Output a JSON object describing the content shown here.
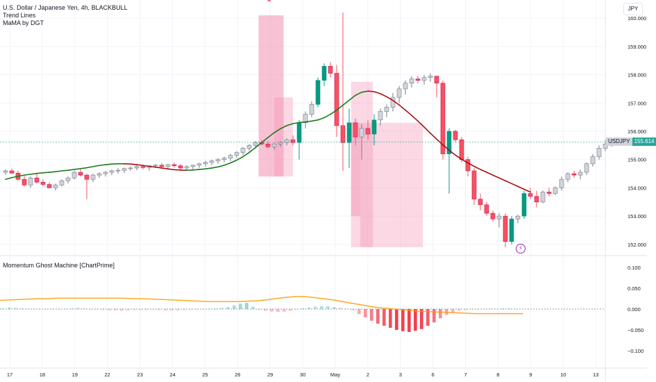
{
  "legend": {
    "symbol_title": "U.S. Dollar / Japanese Yen, 4h, BLACKBULL",
    "indicator_1": "Trend Lines",
    "indicator_2": "MaMA by DGT"
  },
  "currency_button": "JPY",
  "price_label": {
    "symbol": "USDJPY",
    "value": "155.614"
  },
  "pane2_title": "Momentum Ghost Machine [ChartPrime]",
  "colors": {
    "up_fill": "#d1d4dc",
    "down_fill": "#f7525f",
    "bull_green": "#089981",
    "ma_red": "#a70f0f",
    "ma_green": "#1b7a1b",
    "box_pink": "#f48fb1",
    "hist_red": "#f23645",
    "hist_green": "#26a69a",
    "signal_orange": "#ff9800"
  },
  "chart_data": [
    {
      "type": "candlestick",
      "title": "U.S. Dollar / Japanese Yen, 4h, BLACKBULL",
      "y_axis_ticks": [
        "160.000",
        "159.000",
        "158.000",
        "157.000",
        "156.000",
        "155.000",
        "154.000",
        "153.000",
        "152.000"
      ],
      "ylim": [
        151.8,
        160.2
      ],
      "x_axis_ticks": [
        "17",
        "18",
        "19",
        "22",
        "23",
        "24",
        "25",
        "26",
        "29",
        "30",
        "May",
        "2",
        "3",
        "6",
        "7",
        "8",
        "9",
        "10",
        "13"
      ],
      "last_price": 155.614,
      "ohlc": [
        [
          154.55,
          154.65,
          154.45,
          154.6
        ],
        [
          154.6,
          154.68,
          154.5,
          154.52
        ],
        [
          154.52,
          154.6,
          154.25,
          154.3
        ],
        [
          154.3,
          154.42,
          154.05,
          154.1
        ],
        [
          154.1,
          154.4,
          154.0,
          154.35
        ],
        [
          154.35,
          154.5,
          154.15,
          154.2
        ],
        [
          154.2,
          154.3,
          154.05,
          154.12
        ],
        [
          154.12,
          154.2,
          153.98,
          154.0
        ],
        [
          154.0,
          154.15,
          153.9,
          154.1
        ],
        [
          154.1,
          154.3,
          154.05,
          154.25
        ],
        [
          154.25,
          154.4,
          154.15,
          154.35
        ],
        [
          154.35,
          154.6,
          154.3,
          154.55
        ],
        [
          154.55,
          154.7,
          154.4,
          154.45
        ],
        [
          154.45,
          154.5,
          153.6,
          154.3
        ],
        [
          154.3,
          154.5,
          154.2,
          154.45
        ],
        [
          154.45,
          154.55,
          154.35,
          154.5
        ],
        [
          154.5,
          154.6,
          154.4,
          154.55
        ],
        [
          154.55,
          154.65,
          154.45,
          154.6
        ],
        [
          154.6,
          154.7,
          154.5,
          154.62
        ],
        [
          154.62,
          154.72,
          154.52,
          154.68
        ],
        [
          154.68,
          154.75,
          154.6,
          154.7
        ],
        [
          154.7,
          154.8,
          154.62,
          154.75
        ],
        [
          154.75,
          154.82,
          154.65,
          154.72
        ],
        [
          154.72,
          154.8,
          154.6,
          154.78
        ],
        [
          154.78,
          154.85,
          154.7,
          154.8
        ],
        [
          154.8,
          154.88,
          154.7,
          154.75
        ],
        [
          154.75,
          154.85,
          154.68,
          154.82
        ],
        [
          154.82,
          154.9,
          154.72,
          154.78
        ],
        [
          154.78,
          154.85,
          154.6,
          154.7
        ],
        [
          154.7,
          154.8,
          154.62,
          154.75
        ],
        [
          154.75,
          154.82,
          154.65,
          154.8
        ],
        [
          154.8,
          154.88,
          154.7,
          154.85
        ],
        [
          154.85,
          154.95,
          154.75,
          154.9
        ],
        [
          154.9,
          155.0,
          154.8,
          154.95
        ],
        [
          154.95,
          155.05,
          154.85,
          155.0
        ],
        [
          155.0,
          155.1,
          154.9,
          155.05
        ],
        [
          155.05,
          155.2,
          154.95,
          155.15
        ],
        [
          155.15,
          155.3,
          155.05,
          155.25
        ],
        [
          155.25,
          155.45,
          155.15,
          155.4
        ],
        [
          155.4,
          155.55,
          155.3,
          155.5
        ],
        [
          155.5,
          155.65,
          155.4,
          155.6
        ],
        [
          155.6,
          155.7,
          155.5,
          155.55
        ],
        [
          155.55,
          155.65,
          155.4,
          155.45
        ],
        [
          155.45,
          155.6,
          155.35,
          155.55
        ],
        [
          155.55,
          155.65,
          155.45,
          155.6
        ],
        [
          155.6,
          155.75,
          155.5,
          155.7
        ],
        [
          155.7,
          155.85,
          155.5,
          155.6
        ],
        [
          155.6,
          156.4,
          155.0,
          156.3
        ],
        [
          156.3,
          156.7,
          156.1,
          156.6
        ],
        [
          156.6,
          157.05,
          156.5,
          156.95
        ],
        [
          156.95,
          157.9,
          156.85,
          157.8
        ],
        [
          157.8,
          158.4,
          157.6,
          158.3
        ],
        [
          158.3,
          158.45,
          157.9,
          158.05
        ],
        [
          158.05,
          158.35,
          155.8,
          156.2
        ],
        [
          156.2,
          160.2,
          154.6,
          155.6
        ],
        [
          155.6,
          156.8,
          154.7,
          156.3
        ],
        [
          156.3,
          156.45,
          155.5,
          155.8
        ],
        [
          155.8,
          156.25,
          155.0,
          156.1
        ],
        [
          156.1,
          156.4,
          155.7,
          155.9
        ],
        [
          155.9,
          156.6,
          155.5,
          156.4
        ],
        [
          156.4,
          156.8,
          156.2,
          156.7
        ],
        [
          156.7,
          156.95,
          156.5,
          156.85
        ],
        [
          156.85,
          157.35,
          156.7,
          157.2
        ],
        [
          157.2,
          157.6,
          157.0,
          157.5
        ],
        [
          157.5,
          157.8,
          157.3,
          157.7
        ],
        [
          157.7,
          157.95,
          157.55,
          157.85
        ],
        [
          157.85,
          157.95,
          157.7,
          157.8
        ],
        [
          157.8,
          158.0,
          157.65,
          157.9
        ],
        [
          157.9,
          158.05,
          157.75,
          157.95
        ],
        [
          157.95,
          157.95,
          157.2,
          157.7
        ],
        [
          157.7,
          157.8,
          155.0,
          155.2
        ],
        [
          155.2,
          156.1,
          153.8,
          156.0
        ],
        [
          156.0,
          156.05,
          155.6,
          155.7
        ],
        [
          155.7,
          155.8,
          154.9,
          155.0
        ],
        [
          155.0,
          155.1,
          154.4,
          154.6
        ],
        [
          154.6,
          154.7,
          153.4,
          153.6
        ],
        [
          153.6,
          153.8,
          153.2,
          153.4
        ],
        [
          153.4,
          153.5,
          153.0,
          153.1
        ],
        [
          153.1,
          153.2,
          152.8,
          152.9
        ],
        [
          152.9,
          153.1,
          152.6,
          153.0
        ],
        [
          153.0,
          153.1,
          151.9,
          152.1
        ],
        [
          152.1,
          153.0,
          152.0,
          152.9
        ],
        [
          152.9,
          153.05,
          152.75,
          153.0
        ],
        [
          153.0,
          153.9,
          152.9,
          153.8
        ],
        [
          153.8,
          154.0,
          153.6,
          153.7
        ],
        [
          153.7,
          153.9,
          153.3,
          153.5
        ],
        [
          153.5,
          153.9,
          153.45,
          153.85
        ],
        [
          153.85,
          154.0,
          153.7,
          153.8
        ],
        [
          153.8,
          154.05,
          153.75,
          154.0
        ],
        [
          154.0,
          154.4,
          153.9,
          154.3
        ],
        [
          154.3,
          154.55,
          154.2,
          154.5
        ],
        [
          154.5,
          154.6,
          154.35,
          154.45
        ],
        [
          154.45,
          154.65,
          154.3,
          154.55
        ],
        [
          154.55,
          154.9,
          154.45,
          154.85
        ],
        [
          154.85,
          155.2,
          154.75,
          155.1
        ],
        [
          155.1,
          155.5,
          155.0,
          155.4
        ],
        [
          155.4,
          155.7,
          155.3,
          155.55
        ],
        [
          155.55,
          155.75,
          155.45,
          155.7
        ],
        [
          155.7,
          155.72,
          155.55,
          155.6
        ],
        [
          155.6,
          155.7,
          155.55,
          155.614
        ]
      ],
      "moving_average": [
        154.3,
        154.36,
        154.41,
        154.45,
        154.48,
        154.51,
        154.53,
        154.55,
        154.57,
        154.6,
        154.62,
        154.65,
        154.68,
        154.71,
        154.75,
        154.79,
        154.82,
        154.84,
        154.85,
        154.85,
        154.84,
        154.82,
        154.79,
        154.76,
        154.73,
        154.7,
        154.67,
        154.64,
        154.63,
        154.62,
        154.63,
        154.65,
        154.67,
        154.7,
        154.74,
        154.8,
        154.88,
        154.98,
        155.1,
        155.25,
        155.42,
        155.6,
        155.78,
        155.95,
        156.09,
        156.2,
        156.27,
        156.31,
        156.33,
        156.36,
        156.4,
        156.48,
        156.6,
        156.75,
        156.92,
        157.1,
        157.27,
        157.38,
        157.42,
        157.4,
        157.33,
        157.22,
        157.09,
        156.93,
        156.75,
        156.56,
        156.36,
        156.15,
        155.93,
        155.72,
        155.52,
        155.33,
        155.16,
        155.01,
        154.88,
        154.76,
        154.65,
        154.55,
        154.45,
        154.35,
        154.25,
        154.15,
        154.05,
        153.95,
        153.85
      ]
    },
    {
      "type": "bar",
      "title": "Momentum Ghost Machine [ChartPrime]",
      "y_axis_ticks": [
        "0.100",
        "0.050",
        "0.000",
        "−0.050",
        "−0.100"
      ],
      "ylim": [
        -0.125,
        0.125
      ],
      "histogram": [
        0.002,
        0.004,
        0.003,
        0.002,
        0.001,
        0.001,
        0.0,
        0.0,
        0.0,
        0.0,
        0.001,
        0.002,
        0.003,
        0.002,
        0.0,
        -0.001,
        -0.002,
        -0.003,
        -0.003,
        -0.004,
        -0.003,
        -0.002,
        -0.002,
        -0.002,
        -0.001,
        -0.002,
        -0.003,
        -0.003,
        -0.003,
        -0.002,
        -0.001,
        -0.001,
        0.0,
        0.001,
        0.002,
        0.003,
        0.005,
        0.009,
        0.013,
        0.015,
        0.006,
        -0.002,
        -0.004,
        -0.006,
        -0.007,
        -0.006,
        -0.004,
        -0.001,
        0.002,
        0.004,
        0.006,
        0.007,
        0.007,
        0.005,
        0.003,
        0.001,
        -0.003,
        -0.012,
        -0.02,
        -0.028,
        -0.035,
        -0.04,
        -0.045,
        -0.05,
        -0.053,
        -0.055,
        -0.052,
        -0.048,
        -0.04,
        -0.032,
        -0.022,
        -0.014,
        -0.008,
        -0.004,
        -0.002,
        -0.001,
        0.0,
        0.0,
        0.001,
        0.001,
        0.002,
        0.002,
        0.001
      ],
      "signal_line": [
        0.021,
        0.022,
        0.023,
        0.024,
        0.025,
        0.025,
        0.026,
        0.026,
        0.026,
        0.026,
        0.026,
        0.026,
        0.026,
        0.026,
        0.025,
        0.025,
        0.024,
        0.023,
        0.022,
        0.021,
        0.02,
        0.019,
        0.018,
        0.018,
        0.018,
        0.018,
        0.019,
        0.02,
        0.022,
        0.025,
        0.028,
        0.03,
        0.03,
        0.028,
        0.025,
        0.022,
        0.018,
        0.014,
        0.01,
        0.006,
        0.003,
        0.001,
        -0.001,
        -0.003,
        -0.005,
        -0.006,
        -0.007,
        -0.008,
        -0.009,
        -0.01,
        -0.011,
        -0.011,
        -0.011,
        -0.011,
        -0.011,
        -0.011
      ],
      "zero_line": 0
    }
  ]
}
